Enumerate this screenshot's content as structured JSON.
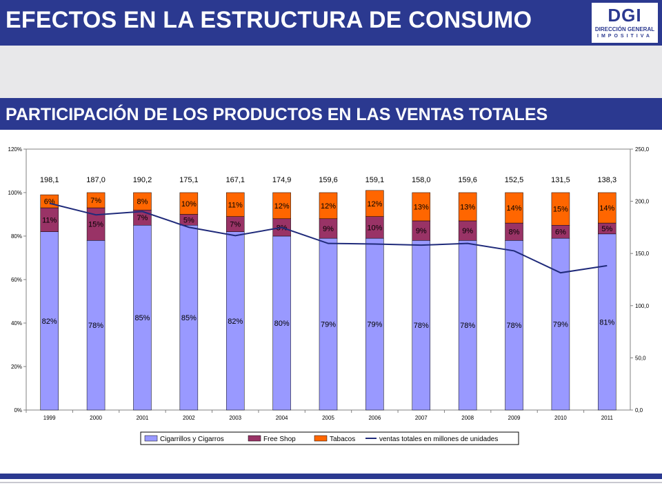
{
  "header": {
    "title": "EFECTOS EN LA ESTRUCTURA DE CONSUMO",
    "logo": {
      "main": "DGI",
      "line1": "DIRECCIÓN GENERAL",
      "line2": "IMPOSITIVA"
    }
  },
  "section": {
    "subtitle": "PARTICIPACIÓN DE LOS PRODUCTOS EN LAS VENTAS TOTALES"
  },
  "colors": {
    "brand": "#2b3990",
    "cigarrillos": "#9999ff",
    "free_shop": "#993366",
    "tabacos": "#ff6600",
    "line": "#1f2a7a"
  },
  "chart_data": {
    "type": "bar",
    "stacked": true,
    "categories": [
      "1999",
      "2000",
      "2001",
      "2002",
      "2003",
      "2004",
      "2005",
      "2006",
      "2007",
      "2008",
      "2009",
      "2010",
      "2011"
    ],
    "series": [
      {
        "name": "Cigarrillos y Cigarros",
        "values": [
          82,
          78,
          85,
          85,
          82,
          80,
          79,
          79,
          78,
          78,
          78,
          79,
          81
        ]
      },
      {
        "name": "Free Shop",
        "values": [
          11,
          15,
          7,
          5,
          7,
          8,
          9,
          10,
          9,
          9,
          8,
          6,
          5
        ]
      },
      {
        "name": "Tabacos",
        "values": [
          6,
          7,
          8,
          10,
          11,
          12,
          12,
          12,
          13,
          13,
          14,
          15,
          14
        ]
      }
    ],
    "line_series": {
      "name": "ventas totales en millones de unidades",
      "axis": "right",
      "values": [
        198.1,
        187.0,
        190.2,
        175.1,
        167.1,
        174.9,
        159.6,
        159.1,
        158.0,
        159.6,
        152.5,
        131.5,
        138.3
      ],
      "labels": [
        "198,1",
        "187,0",
        "190,2",
        "175,1",
        "167,1",
        "174,9",
        "159,6",
        "159,1",
        "158,0",
        "159,6",
        "152,5",
        "131,5",
        "138,3"
      ]
    },
    "y_left": {
      "ylim": [
        0,
        120
      ],
      "ticks": [
        "0%",
        "20%",
        "40%",
        "60%",
        "80%",
        "100%",
        "120%"
      ]
    },
    "y_right": {
      "ylim": [
        0,
        250
      ],
      "ticks": [
        "0,0",
        "50,0",
        "100,0",
        "150,0",
        "200,0",
        "250,0"
      ]
    },
    "legend_position": "bottom",
    "grid": false
  }
}
